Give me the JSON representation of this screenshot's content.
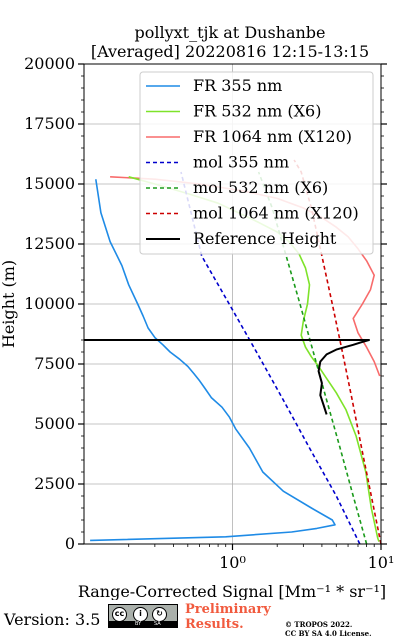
{
  "chart_data": {
    "type": "line",
    "title": "pollyxt_tjk at Dushanbe",
    "subtitle": "[Averaged] 20220816 12:15-13:15",
    "xlabel": "Range-Corrected Signal [Mm⁻¹ * sr⁻¹]",
    "ylabel": "Height (m)",
    "x_scale": "log",
    "xlim": [
      0.1,
      10
    ],
    "ylim": [
      0,
      20000
    ],
    "x_ticks": [
      {
        "value": 1,
        "label": "10⁰"
      },
      {
        "value": 10,
        "label": "10¹"
      }
    ],
    "y_ticks": [
      0,
      2500,
      5000,
      7500,
      10000,
      12500,
      15000,
      17500,
      20000
    ],
    "grid": true,
    "legend_position": "upper-right",
    "series": [
      {
        "name": "FR 355 nm",
        "color": "#1f8be6",
        "style": "solid",
        "x": [
          0.11,
          0.9,
          2.5,
          3.7,
          4.9,
          4.7,
          3.4,
          2.2,
          1.6,
          1.3,
          1.05,
          0.95,
          0.85,
          0.72,
          0.65,
          0.6,
          0.55,
          0.5,
          0.44,
          0.38,
          0.34,
          0.3,
          0.27,
          0.25,
          0.23,
          0.2,
          0.18,
          0.15,
          0.13,
          0.12
        ],
        "y": [
          150,
          300,
          500,
          650,
          800,
          1000,
          1500,
          2200,
          3000,
          4000,
          4800,
          5300,
          5700,
          6100,
          6500,
          6800,
          7100,
          7400,
          7700,
          8000,
          8300,
          8600,
          9000,
          9500,
          10000,
          10800,
          11600,
          12600,
          13800,
          15200
        ]
      },
      {
        "name": "FR 532 nm (X6)",
        "color": "#7ee32a",
        "style": "solid",
        "x": [
          9.7,
          9.5,
          8.6,
          7.9,
          6.8,
          5.8,
          5.0,
          4.3,
          3.8,
          3.4,
          3.1,
          2.9,
          3.0,
          3.2,
          3.3,
          3.1,
          2.8,
          2.4,
          2.0,
          1.5,
          1.1,
          0.8,
          0.5,
          0.3,
          0.2
        ],
        "y": [
          100,
          250,
          1500,
          3000,
          4500,
          5600,
          6300,
          6900,
          7400,
          7800,
          8200,
          8700,
          9300,
          10000,
          10800,
          11500,
          12100,
          12600,
          13000,
          13400,
          13800,
          14200,
          14600,
          15000,
          15300
        ]
      },
      {
        "name": "FR 1064 nm (X120)",
        "color": "#f86b6b",
        "style": "solid",
        "x": [
          9.8,
          9.0,
          8.0,
          7.0,
          6.5,
          7.5,
          8.5,
          9.0,
          8.0,
          7.0,
          6.0,
          5.0,
          4.0,
          3.0,
          2.0,
          1.2,
          0.6,
          0.3,
          0.15
        ],
        "y": [
          7000,
          7600,
          8200,
          8800,
          9400,
          10000,
          10600,
          11200,
          11800,
          12300,
          12800,
          13200,
          13600,
          14000,
          14400,
          14700,
          15000,
          15200,
          15300
        ]
      },
      {
        "name": "mol 355 nm",
        "color": "#0000cc",
        "style": "dashed",
        "x": [
          7.2,
          5.0,
          3.3,
          2.2,
          1.45,
          0.95,
          0.62,
          0.45
        ],
        "y": [
          0,
          2000,
          4000,
          6000,
          8000,
          10000,
          12000,
          15500
        ]
      },
      {
        "name": "mol 532 nm (X6)",
        "color": "#1a9a1a",
        "style": "dashed",
        "x": [
          8.0,
          6.5,
          5.3,
          4.3,
          3.5,
          2.85,
          2.3,
          1.85,
          1.5
        ],
        "y": [
          0,
          2000,
          4000,
          6000,
          8000,
          10000,
          12000,
          14000,
          15500
        ]
      },
      {
        "name": "mol 1064 nm (X120)",
        "color": "#cc0000",
        "style": "dashed",
        "x": [
          10.0,
          8.6,
          7.4,
          6.4,
          5.5,
          4.7,
          4.0,
          3.4,
          2.9,
          2.6
        ],
        "y": [
          0,
          2000,
          4000,
          6000,
          8000,
          10000,
          12000,
          14000,
          15500,
          16000
        ]
      },
      {
        "name": "Reference Height",
        "color": "#000000",
        "style": "solid",
        "x": [
          4.3,
          4.1,
          3.9,
          4.0,
          3.8,
          3.9,
          4.3,
          5.0,
          5.7,
          6.5,
          7.3,
          8.3,
          1.0,
          0.1
        ],
        "y": [
          5400,
          5800,
          6200,
          6700,
          7200,
          7600,
          7900,
          8100,
          8200,
          8300,
          8400,
          8500,
          8500,
          8500
        ]
      }
    ]
  },
  "footer": {
    "version": "Version: 3.5",
    "license_badge": {
      "cc": "cc",
      "by": "BY",
      "sa": "SA"
    },
    "preliminary": "Preliminary Results.",
    "copyright_line1": "© TROPOS 2022.",
    "copyright_line2": "CC BY SA 4.0 License."
  }
}
